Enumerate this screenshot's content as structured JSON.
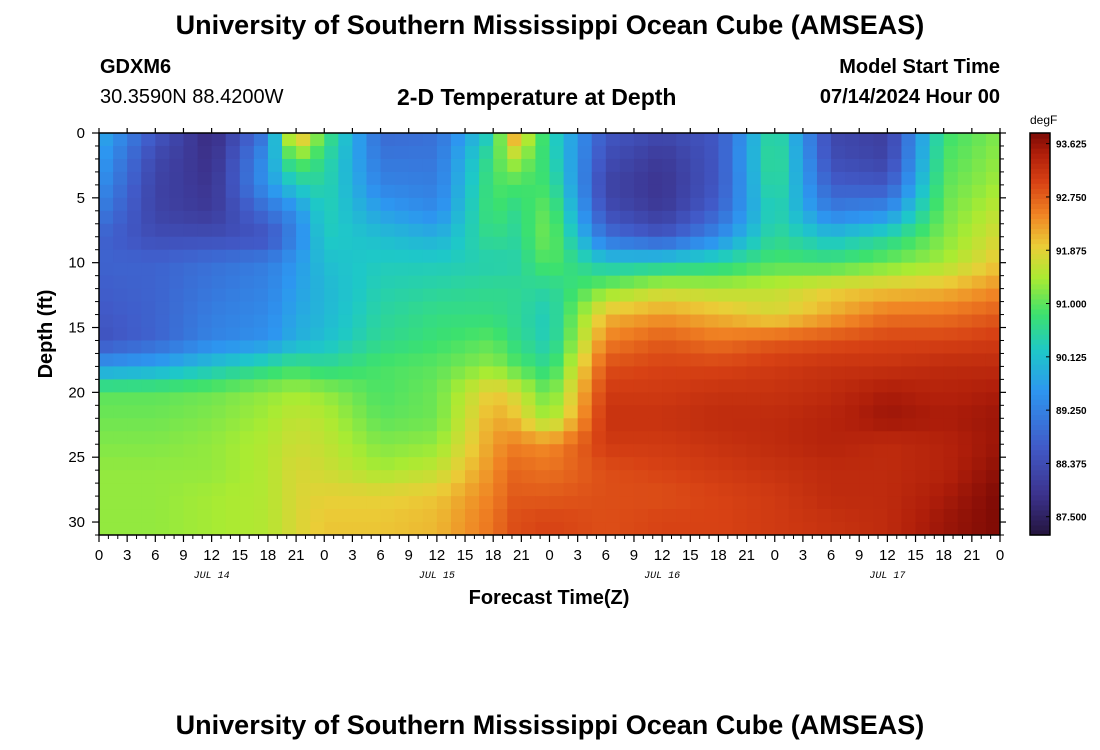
{
  "header": {
    "title": "University of Southern Mississippi Ocean Cube (AMSEAS)",
    "station_id": "GDXM6",
    "coordinates": "30.3590N  88.4200W",
    "subtitle": "2-D Temperature at Depth",
    "model_start_label": "Model Start Time",
    "model_start_value": "07/14/2024 Hour 00"
  },
  "footer": {
    "repeated_title": "University of Southern Mississippi Ocean Cube (AMSEAS)"
  },
  "chart_data": {
    "type": "heatmap",
    "title": "2-D Temperature at Depth",
    "xlabel": "Forecast Time(Z)",
    "ylabel": "Depth (ft)",
    "x_unit": "forecast hour since 07/14/2024 00Z",
    "x_range": [
      0,
      96
    ],
    "x_tick_labels": [
      "0",
      "3",
      "6",
      "9",
      "12",
      "15",
      "18",
      "21",
      "0",
      "3",
      "6",
      "9",
      "12",
      "15",
      "18",
      "21",
      "0",
      "3",
      "6",
      "9",
      "12",
      "15",
      "18",
      "21",
      "0",
      "3",
      "6",
      "9",
      "12",
      "15",
      "18",
      "21",
      "0"
    ],
    "date_labels": [
      "JUL 14",
      "JUL 15",
      "JUL 16",
      "JUL 17"
    ],
    "y_range": [
      0,
      31
    ],
    "y_inverted": true,
    "y_ticks": [
      0,
      5,
      10,
      15,
      20,
      25,
      30
    ],
    "colorbar": {
      "unit": "degF",
      "min": 87.2,
      "max": 93.8,
      "tick_labels": [
        "93.625",
        "92.750",
        "91.875",
        "91.000",
        "90.125",
        "89.250",
        "88.375",
        "87.500"
      ]
    },
    "depth_levels_ft": [
      0,
      2,
      4,
      6,
      8,
      10,
      12,
      14,
      16,
      18,
      20,
      22,
      24,
      26,
      28,
      30,
      31
    ],
    "time_hours": [
      0,
      6,
      12,
      18,
      21,
      24,
      30,
      36,
      42,
      44,
      48,
      54,
      60,
      66,
      72,
      78,
      84,
      90,
      96
    ],
    "temperature_degF": [
      [
        89.9,
        88.6,
        87.7,
        89.2,
        92.5,
        90.9,
        88.9,
        89.0,
        90.4,
        92.4,
        90.5,
        88.6,
        88.3,
        88.6,
        90.7,
        88.3,
        88.1,
        90.8,
        91.2
      ],
      [
        89.7,
        88.3,
        87.8,
        89.6,
        91.2,
        90.6,
        89.1,
        89.1,
        90.8,
        91.5,
        90.6,
        88.4,
        88.0,
        88.6,
        90.8,
        88.4,
        88.2,
        90.9,
        91.3
      ],
      [
        89.5,
        88.2,
        87.9,
        89.6,
        90.3,
        90.5,
        89.3,
        89.2,
        90.9,
        90.9,
        90.8,
        88.2,
        87.9,
        88.6,
        90.7,
        88.7,
        88.6,
        91.0,
        91.4
      ],
      [
        89.2,
        88.2,
        88.0,
        89.0,
        89.5,
        90.4,
        89.7,
        89.4,
        90.9,
        90.6,
        91.1,
        88.4,
        88.0,
        88.8,
        90.5,
        89.2,
        89.4,
        91.1,
        91.6
      ],
      [
        88.8,
        88.4,
        88.4,
        88.5,
        89.3,
        90.3,
        90.1,
        89.9,
        90.7,
        90.5,
        91.2,
        89.0,
        88.6,
        89.4,
        90.6,
        90.1,
        90.5,
        91.2,
        91.8
      ],
      [
        88.8,
        88.8,
        89.0,
        89.2,
        89.6,
        90.1,
        90.3,
        90.3,
        90.4,
        90.4,
        91.0,
        90.2,
        90.3,
        90.5,
        90.9,
        90.8,
        91.1,
        91.4,
        92.0
      ],
      [
        88.7,
        88.8,
        89.1,
        89.3,
        89.7,
        90.0,
        90.4,
        90.5,
        90.6,
        90.6,
        90.5,
        91.2,
        91.6,
        91.5,
        91.6,
        91.9,
        92.0,
        92.1,
        92.4
      ],
      [
        88.6,
        88.8,
        89.2,
        89.4,
        89.8,
        90.0,
        90.5,
        90.7,
        90.7,
        90.6,
        90.3,
        92.1,
        92.3,
        92.1,
        91.8,
        92.2,
        92.6,
        92.6,
        92.8
      ],
      [
        88.5,
        88.8,
        89.3,
        89.5,
        89.9,
        90.1,
        90.6,
        90.8,
        91.0,
        90.7,
        90.3,
        92.5,
        92.8,
        92.6,
        92.8,
        92.9,
        93.0,
        93.0,
        93.1
      ],
      [
        89.6,
        89.8,
        90.2,
        90.6,
        90.8,
        90.6,
        90.9,
        91.0,
        91.3,
        91.0,
        90.6,
        92.9,
        93.0,
        93.0,
        93.1,
        93.2,
        93.2,
        93.3,
        93.3
      ],
      [
        91.0,
        91.0,
        91.1,
        91.3,
        91.4,
        91.3,
        90.9,
        91.1,
        92.0,
        91.8,
        91.0,
        93.1,
        93.1,
        93.2,
        93.2,
        93.3,
        93.5,
        93.4,
        93.5
      ],
      [
        91.1,
        91.1,
        91.2,
        91.4,
        91.6,
        91.5,
        91.0,
        91.1,
        92.2,
        92.1,
        91.3,
        93.2,
        93.2,
        93.3,
        93.3,
        93.4,
        93.6,
        93.5,
        93.6
      ],
      [
        91.2,
        91.2,
        91.3,
        91.5,
        91.7,
        91.6,
        91.2,
        91.3,
        92.3,
        92.5,
        92.4,
        93.1,
        93.1,
        93.2,
        93.3,
        93.4,
        93.3,
        93.4,
        93.6
      ],
      [
        91.3,
        91.3,
        91.3,
        91.5,
        91.8,
        91.7,
        91.4,
        91.6,
        92.4,
        92.7,
        92.6,
        92.9,
        93.0,
        93.1,
        93.2,
        93.3,
        93.3,
        93.4,
        93.7
      ],
      [
        91.3,
        91.3,
        91.4,
        91.5,
        91.8,
        91.9,
        91.9,
        92.0,
        92.5,
        92.8,
        92.8,
        92.9,
        92.9,
        93.0,
        93.1,
        93.3,
        93.3,
        93.5,
        93.8
      ],
      [
        91.3,
        91.3,
        91.4,
        91.5,
        91.8,
        92.0,
        92.0,
        92.1,
        92.6,
        92.9,
        93.0,
        92.9,
        93.0,
        93.0,
        93.1,
        93.2,
        93.3,
        93.6,
        93.8
      ],
      [
        91.3,
        91.3,
        91.4,
        91.5,
        91.8,
        92.0,
        92.0,
        92.1,
        92.6,
        92.9,
        93.0,
        92.9,
        93.0,
        93.0,
        93.1,
        93.2,
        93.3,
        93.6,
        93.8
      ]
    ]
  }
}
